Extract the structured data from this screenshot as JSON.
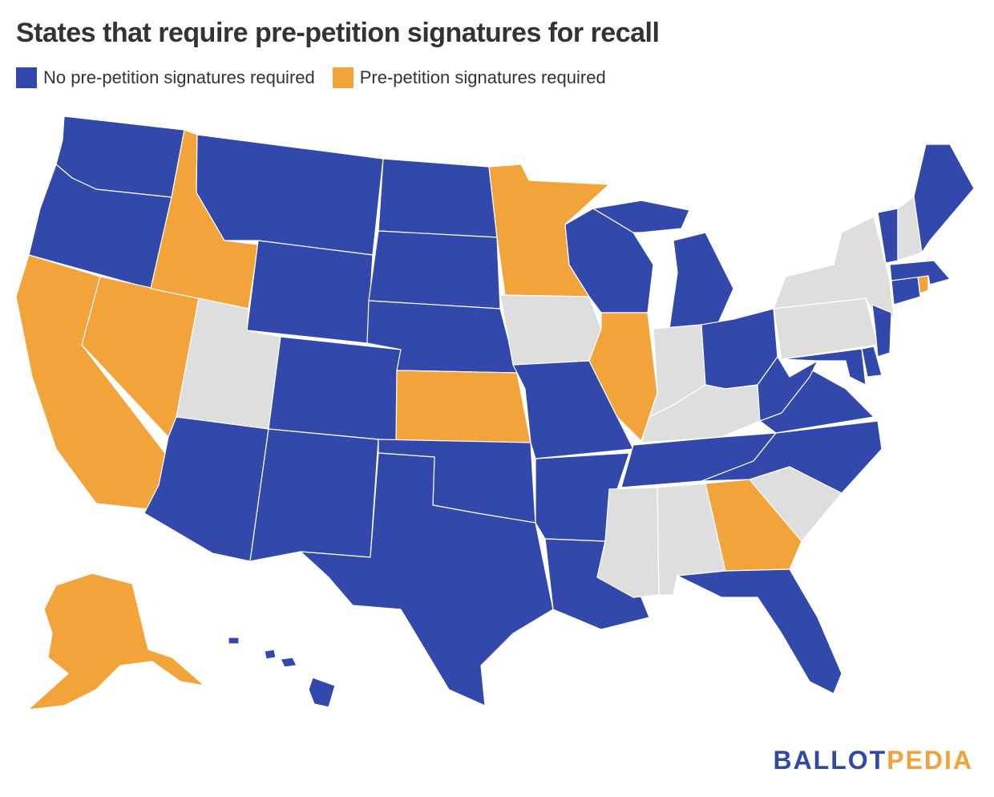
{
  "title": "States that require pre-petition signatures for recall",
  "legend": {
    "no_required": {
      "label": "No pre-petition signatures required",
      "color": "#3249ab"
    },
    "required": {
      "label": "Pre-petition signatures required",
      "color": "#f2a33a"
    }
  },
  "no_data_color": "#dedede",
  "states": {
    "required": [
      "Alaska",
      "California",
      "Nevada",
      "Idaho",
      "Minnesota",
      "Kansas",
      "Illinois",
      "Georgia",
      "Rhode Island"
    ],
    "no_required": [
      "Washington",
      "Oregon",
      "Montana",
      "Wyoming",
      "Colorado",
      "Arizona",
      "New Mexico",
      "North Dakota",
      "South Dakota",
      "Nebraska",
      "Oklahoma",
      "Texas",
      "Missouri",
      "Arkansas",
      "Louisiana",
      "Wisconsin",
      "Michigan",
      "Ohio",
      "West Virginia",
      "Virginia",
      "Tennessee",
      "North Carolina",
      "Florida",
      "Maine",
      "Vermont",
      "Massachusetts",
      "Connecticut",
      "New Jersey",
      "Maryland",
      "Delaware",
      "Hawaii"
    ],
    "not_applicable": [
      "Utah",
      "Iowa",
      "Indiana",
      "Kentucky",
      "Mississippi",
      "Alabama",
      "South Carolina",
      "New York",
      "Pennsylvania",
      "New Hampshire"
    ]
  },
  "logo": {
    "part1": "BALLOT",
    "part2": "PEDIA"
  }
}
